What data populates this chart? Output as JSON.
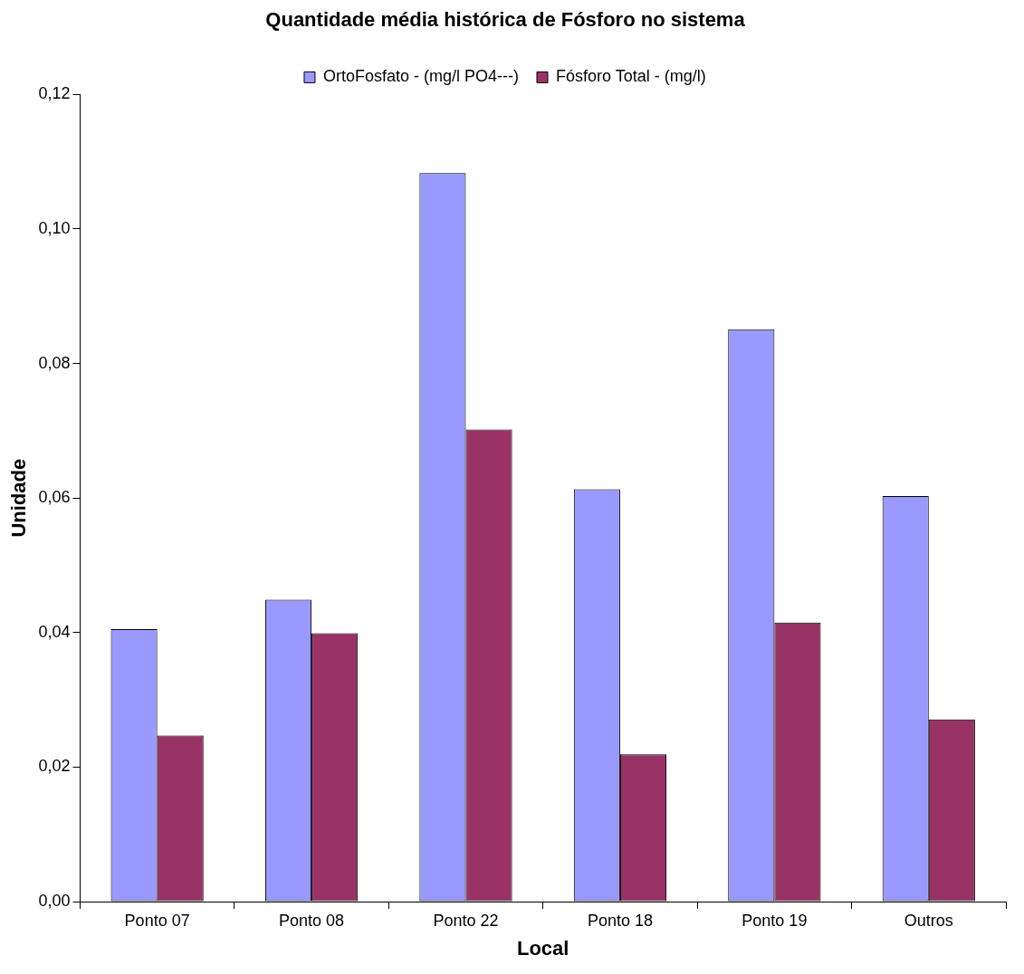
{
  "chart_data": {
    "type": "bar",
    "title": "Quantidade média histórica de Fósforo no sistema",
    "xlabel": "Local",
    "ylabel": "Unidade",
    "categories": [
      "Ponto 07",
      "Ponto 08",
      "Ponto 22",
      "Ponto 18",
      "Ponto 19",
      "Outros"
    ],
    "series": [
      {
        "name": "OrtoFosfato - (mg/l PO4---)",
        "color": "#9999ff",
        "values": [
          0.0405,
          0.0449,
          0.1083,
          0.0613,
          0.0851,
          0.0603
        ]
      },
      {
        "name": "Fósforo Total - (mg/l)",
        "color": "#993366",
        "values": [
          0.0247,
          0.0399,
          0.0702,
          0.0219,
          0.0415,
          0.0271
        ]
      }
    ],
    "ylim": [
      0,
      0.12
    ],
    "yticks": [
      {
        "value": 0,
        "label": "0,00"
      },
      {
        "value": 0.02,
        "label": "0,02"
      },
      {
        "value": 0.04,
        "label": "0,04"
      },
      {
        "value": 0.06,
        "label": "0,06"
      },
      {
        "value": 0.08,
        "label": "0,08"
      },
      {
        "value": 0.1,
        "label": "0,10"
      },
      {
        "value": 0.12,
        "label": "0,12"
      }
    ],
    "grid": false,
    "legend": "top"
  }
}
